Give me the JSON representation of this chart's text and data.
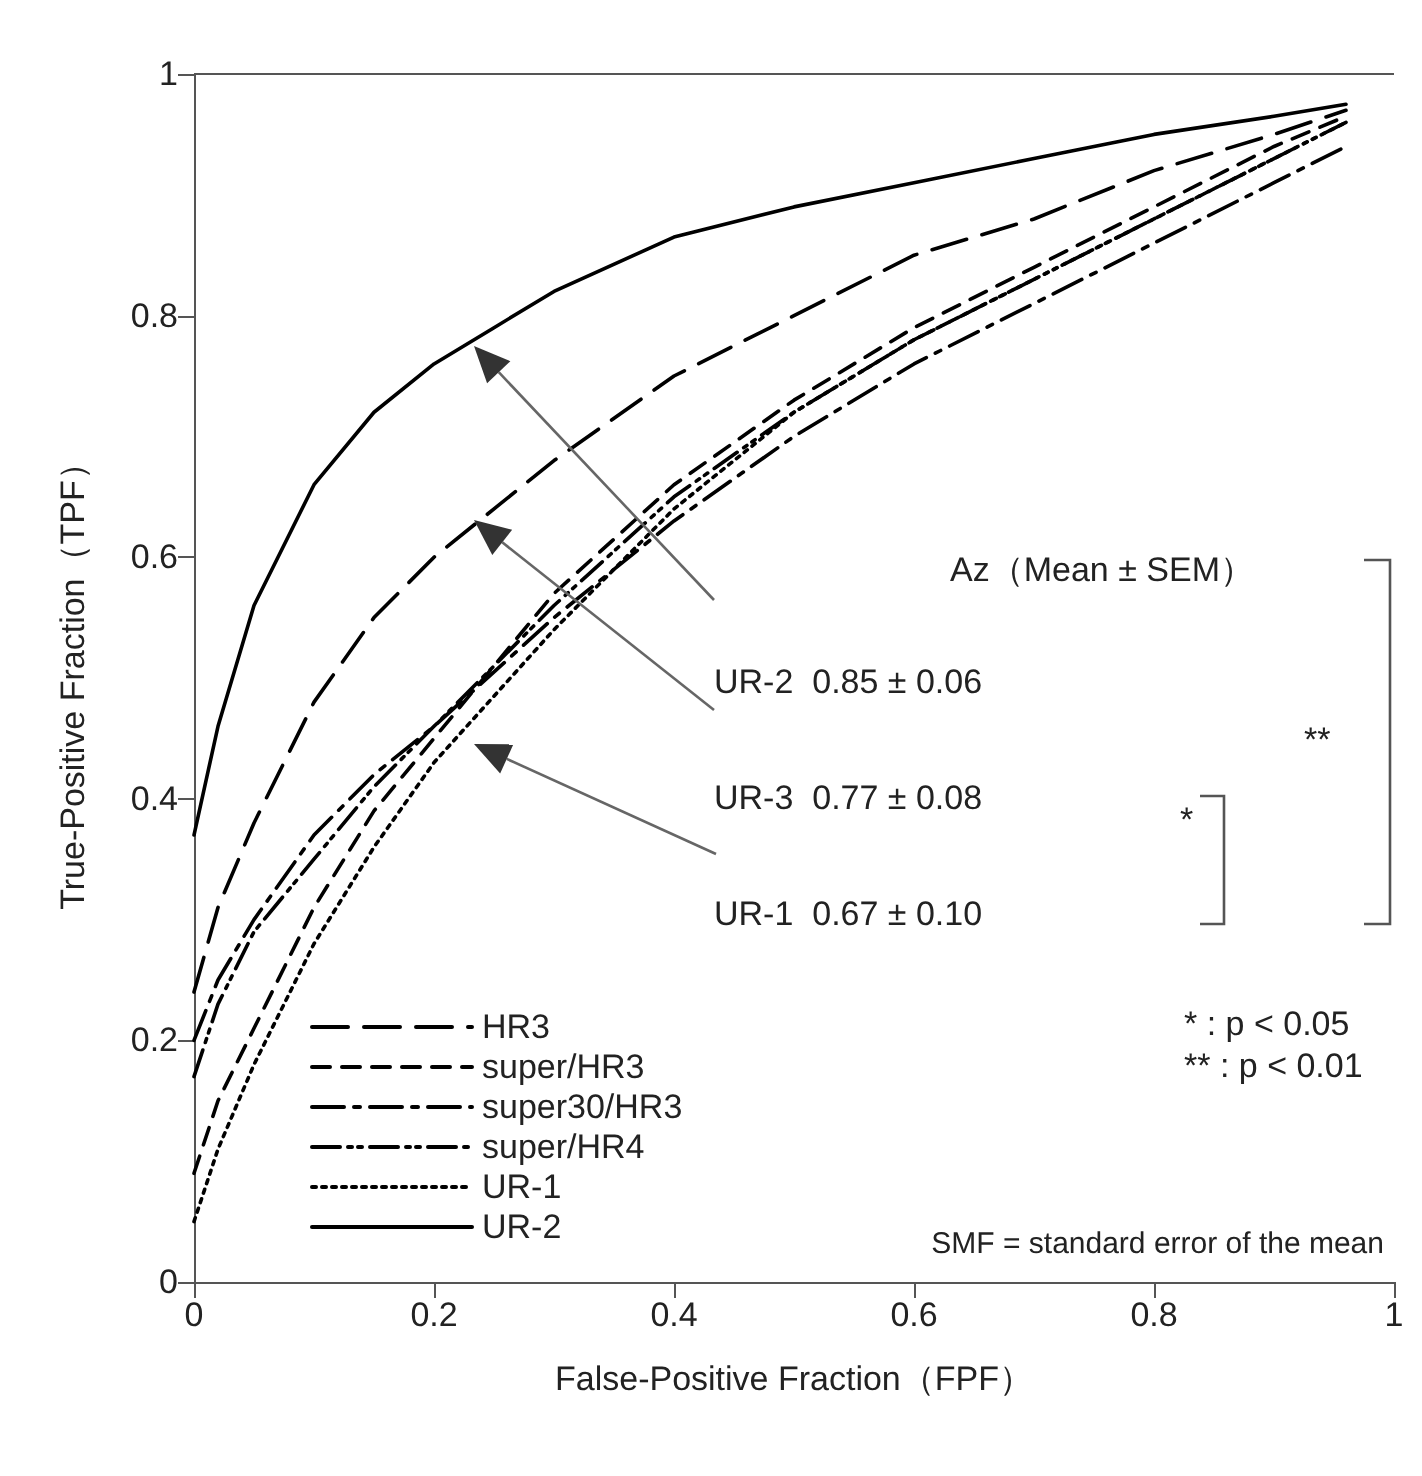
{
  "chart_data": {
    "type": "line",
    "xlabel": "False-Positive Fraction（FPF）",
    "ylabel": "True-Positive Fraction（TPF）",
    "xlim": [
      0,
      1
    ],
    "ylim": [
      0,
      1
    ],
    "xticks": [
      0,
      0.2,
      0.4,
      0.6,
      0.8,
      1
    ],
    "yticks": [
      0,
      0.2,
      0.4,
      0.6,
      0.8,
      1
    ],
    "grid": false,
    "legend": "bottom left",
    "marker": "none",
    "series": [
      {
        "name": "HR3",
        "color": "#000000",
        "line_style": "dashed",
        "x": [
          0,
          0.02,
          0.05,
          0.1,
          0.15,
          0.2,
          0.3,
          0.4,
          0.5,
          0.6,
          0.7,
          0.8,
          0.9,
          0.96
        ],
        "values": [
          0.24,
          0.31,
          0.38,
          0.48,
          0.55,
          0.6,
          0.68,
          0.75,
          0.8,
          0.85,
          0.88,
          0.92,
          0.95,
          0.97
        ]
      },
      {
        "name": "super/HR3",
        "color": "#000000",
        "line_style": "dashed",
        "x": [
          0,
          0.02,
          0.05,
          0.1,
          0.15,
          0.2,
          0.3,
          0.4,
          0.5,
          0.6,
          0.7,
          0.8,
          0.9,
          0.96
        ],
        "values": [
          0.09,
          0.15,
          0.21,
          0.31,
          0.39,
          0.45,
          0.57,
          0.66,
          0.73,
          0.79,
          0.84,
          0.89,
          0.94,
          0.965
        ]
      },
      {
        "name": "super30/HR3",
        "color": "#000000",
        "line_style": "dashed",
        "x": [
          0,
          0.02,
          0.05,
          0.1,
          0.15,
          0.2,
          0.3,
          0.4,
          0.5,
          0.6,
          0.7,
          0.8,
          0.9,
          0.96
        ],
        "values": [
          0.2,
          0.25,
          0.3,
          0.37,
          0.42,
          0.46,
          0.55,
          0.63,
          0.7,
          0.76,
          0.81,
          0.86,
          0.91,
          0.94
        ]
      },
      {
        "name": "super/HR4",
        "color": "#000000",
        "line_style": "dashed",
        "x": [
          0,
          0.02,
          0.05,
          0.1,
          0.15,
          0.2,
          0.3,
          0.4,
          0.5,
          0.6,
          0.7,
          0.8,
          0.9,
          0.96
        ],
        "values": [
          0.17,
          0.23,
          0.29,
          0.35,
          0.41,
          0.46,
          0.56,
          0.65,
          0.72,
          0.78,
          0.83,
          0.88,
          0.93,
          0.96
        ]
      },
      {
        "name": "UR-1",
        "color": "#000000",
        "line_style": "dotted",
        "x": [
          0,
          0.02,
          0.05,
          0.1,
          0.15,
          0.2,
          0.3,
          0.4,
          0.5,
          0.6,
          0.7,
          0.8,
          0.9,
          0.96
        ],
        "values": [
          0.05,
          0.11,
          0.18,
          0.28,
          0.36,
          0.43,
          0.54,
          0.64,
          0.72,
          0.78,
          0.83,
          0.88,
          0.93,
          0.96
        ]
      },
      {
        "name": "UR-2",
        "color": "#000000",
        "line_style": "solid",
        "x": [
          0,
          0.02,
          0.05,
          0.1,
          0.15,
          0.2,
          0.25,
          0.3,
          0.4,
          0.5,
          0.6,
          0.7,
          0.8,
          0.9,
          0.96
        ],
        "values": [
          0.37,
          0.46,
          0.56,
          0.66,
          0.72,
          0.76,
          0.79,
          0.82,
          0.865,
          0.89,
          0.91,
          0.93,
          0.95,
          0.965,
          0.975
        ]
      }
    ],
    "annotations": [
      "Az（Mean ± SEM）",
      "UR-2  0.85 ± 0.06",
      "UR-3  0.77 ± 0.08",
      "UR-1  0.67 ± 0.10",
      "*",
      "**",
      "* : p < 0.05",
      "** : p < 0.01",
      "SMF = standard error of the mean"
    ]
  }
}
